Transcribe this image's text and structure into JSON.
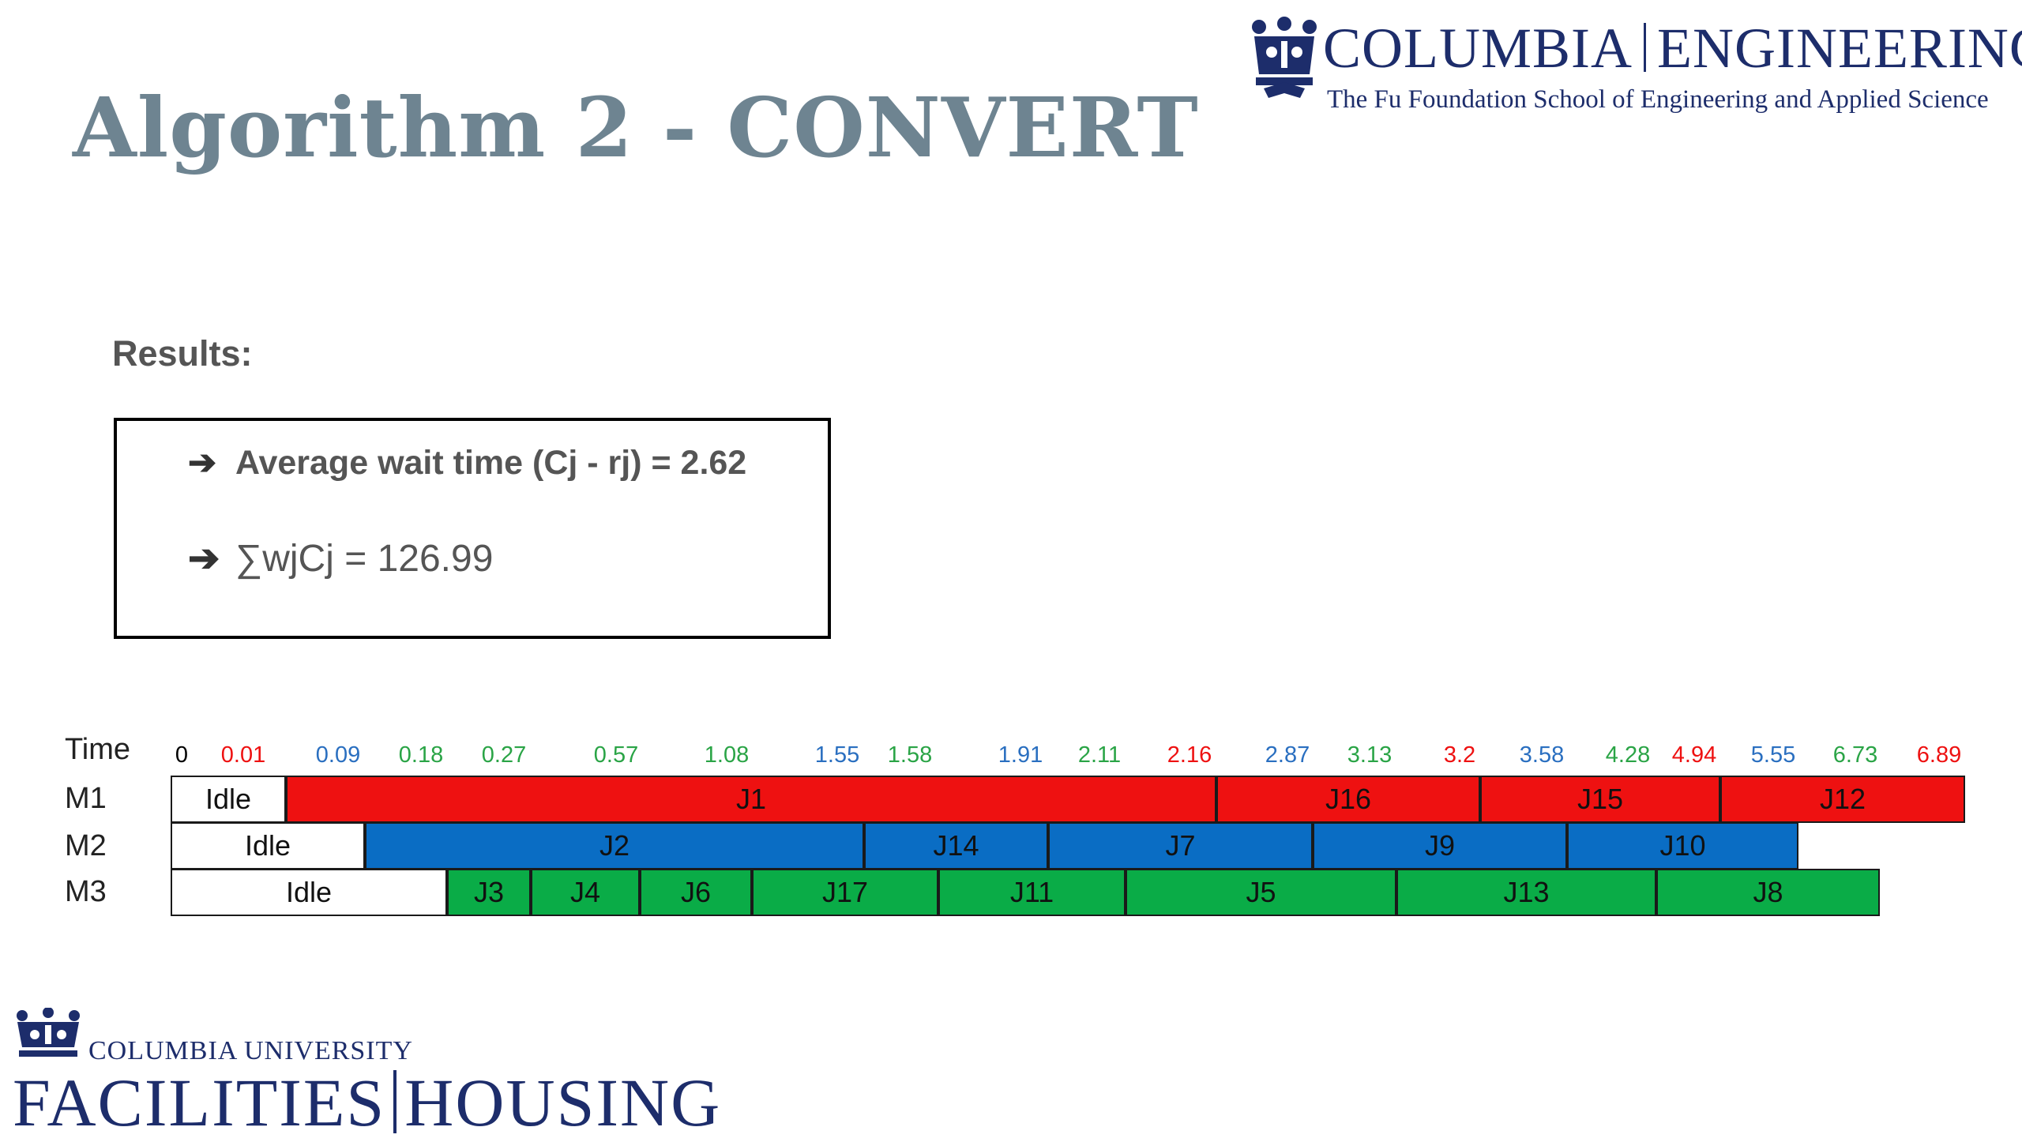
{
  "slide": {
    "title": "Algorithm 2 - CONVERT",
    "results_label": "Results:",
    "results": [
      {
        "arrow": "➔",
        "text": "Average wait time (Cj - rj) = 2.62"
      },
      {
        "arrow": "➔",
        "text": "∑wjCj = 126.99"
      }
    ]
  },
  "logos": {
    "engineering": {
      "name_part1": "COLUMBIA",
      "name_part2": "ENGINEERING",
      "subtitle": "The Fu Foundation School of Engineering and Applied Science",
      "icon": "crown-icon",
      "color": "#1d2d6b"
    },
    "facilities": {
      "small": "COLUMBIA UNIVERSITY",
      "part1": "FACILITIES",
      "part2": "HOUSING",
      "icon": "crown-icon",
      "color": "#1d2d6b"
    }
  },
  "schedule": {
    "time_label": "Time",
    "colors": {
      "red": "#ee1111",
      "blue": "#0a6dc4",
      "green": "#0aac47",
      "idle": "#ffffff"
    },
    "ticks": [
      {
        "label": "0",
        "value": 0,
        "color": "black"
      },
      {
        "label": "0.01",
        "value": 0.01,
        "color": "red"
      },
      {
        "label": "0.09",
        "value": 0.09,
        "color": "blue"
      },
      {
        "label": "0.18",
        "value": 0.18,
        "color": "green"
      },
      {
        "label": "0.27",
        "value": 0.27,
        "color": "green"
      },
      {
        "label": "0.57",
        "value": 0.57,
        "color": "green"
      },
      {
        "label": "1.08",
        "value": 1.08,
        "color": "green"
      },
      {
        "label": "1.55",
        "value": 1.55,
        "color": "blue"
      },
      {
        "label": "1.58",
        "value": 1.58,
        "color": "green"
      },
      {
        "label": "1.91",
        "value": 1.91,
        "color": "blue"
      },
      {
        "label": "2.11",
        "value": 2.11,
        "color": "green"
      },
      {
        "label": "2.16",
        "value": 2.16,
        "color": "red"
      },
      {
        "label": "2.87",
        "value": 2.87,
        "color": "blue"
      },
      {
        "label": "3.13",
        "value": 3.13,
        "color": "green"
      },
      {
        "label": "3.2",
        "value": 3.2,
        "color": "red"
      },
      {
        "label": "3.58",
        "value": 3.58,
        "color": "blue"
      },
      {
        "label": "4.28",
        "value": 4.28,
        "color": "green"
      },
      {
        "label": "4.94",
        "value": 4.94,
        "color": "red"
      },
      {
        "label": "5.55",
        "value": 5.55,
        "color": "blue"
      },
      {
        "label": "6.73",
        "value": 6.73,
        "color": "green"
      },
      {
        "label": "6.89",
        "value": 6.89,
        "color": "red"
      }
    ],
    "machines": [
      {
        "label": "M1",
        "segments": [
          {
            "label": "Idle",
            "start": 0,
            "end": 0.01,
            "color": "idle"
          },
          {
            "label": "J1",
            "start": 0.01,
            "end": 2.16,
            "color": "red"
          },
          {
            "label": "J16",
            "start": 2.16,
            "end": 3.2,
            "color": "red"
          },
          {
            "label": "J15",
            "start": 3.2,
            "end": 4.94,
            "color": "red"
          },
          {
            "label": "J12",
            "start": 4.94,
            "end": 6.89,
            "color": "red"
          }
        ]
      },
      {
        "label": "M2",
        "segments": [
          {
            "label": "Idle",
            "start": 0,
            "end": 0.09,
            "color": "idle"
          },
          {
            "label": "J2",
            "start": 0.09,
            "end": 1.55,
            "color": "blue"
          },
          {
            "label": "J14",
            "start": 1.55,
            "end": 1.91,
            "color": "blue"
          },
          {
            "label": "J7",
            "start": 1.91,
            "end": 2.87,
            "color": "blue"
          },
          {
            "label": "J9",
            "start": 2.87,
            "end": 3.58,
            "color": "blue"
          },
          {
            "label": "J10",
            "start": 3.58,
            "end": 5.55,
            "color": "blue"
          }
        ]
      },
      {
        "label": "M3",
        "segments": [
          {
            "label": "Idle",
            "start": 0,
            "end": 0.18,
            "color": "idle"
          },
          {
            "label": "J3",
            "start": 0.18,
            "end": 0.27,
            "color": "green"
          },
          {
            "label": "J4",
            "start": 0.27,
            "end": 0.57,
            "color": "green"
          },
          {
            "label": "J6",
            "start": 0.57,
            "end": 1.08,
            "color": "green"
          },
          {
            "label": "J17",
            "start": 1.08,
            "end": 1.58,
            "color": "green"
          },
          {
            "label": "J11",
            "start": 1.58,
            "end": 2.11,
            "color": "green"
          },
          {
            "label": "J5",
            "start": 2.11,
            "end": 3.13,
            "color": "green"
          },
          {
            "label": "J13",
            "start": 3.13,
            "end": 4.28,
            "color": "green"
          },
          {
            "label": "J8",
            "start": 4.28,
            "end": 6.73,
            "color": "green"
          }
        ]
      }
    ]
  }
}
